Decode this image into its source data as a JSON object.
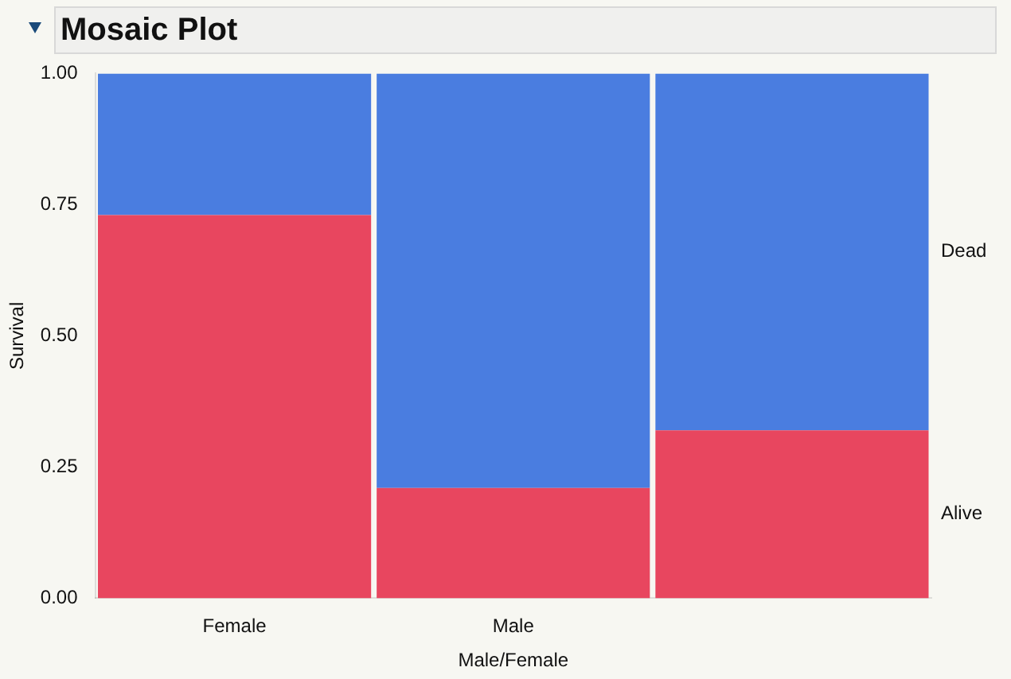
{
  "chart_data": {
    "type": "bar",
    "title": "Mosaic Plot",
    "xlabel": "Male/Female",
    "ylabel": "Survival",
    "stacked": true,
    "categories": [
      "Female",
      "Male",
      null
    ],
    "series": [
      {
        "name": "Alive",
        "color": "#e8465f",
        "values": [
          0.73,
          0.21,
          0.32
        ]
      },
      {
        "name": "Dead",
        "color": "#4a7de0",
        "values": [
          0.27,
          0.79,
          0.68
        ]
      }
    ],
    "ylim": [
      0,
      1
    ],
    "yticks": [
      {
        "value": 0,
        "label": "0.00"
      },
      {
        "value": 0.25,
        "label": "0.25"
      },
      {
        "value": 0.5,
        "label": "0.50"
      },
      {
        "value": 0.75,
        "label": "0.75"
      },
      {
        "value": 1,
        "label": "1.00"
      }
    ],
    "grid": false,
    "legend": false
  }
}
